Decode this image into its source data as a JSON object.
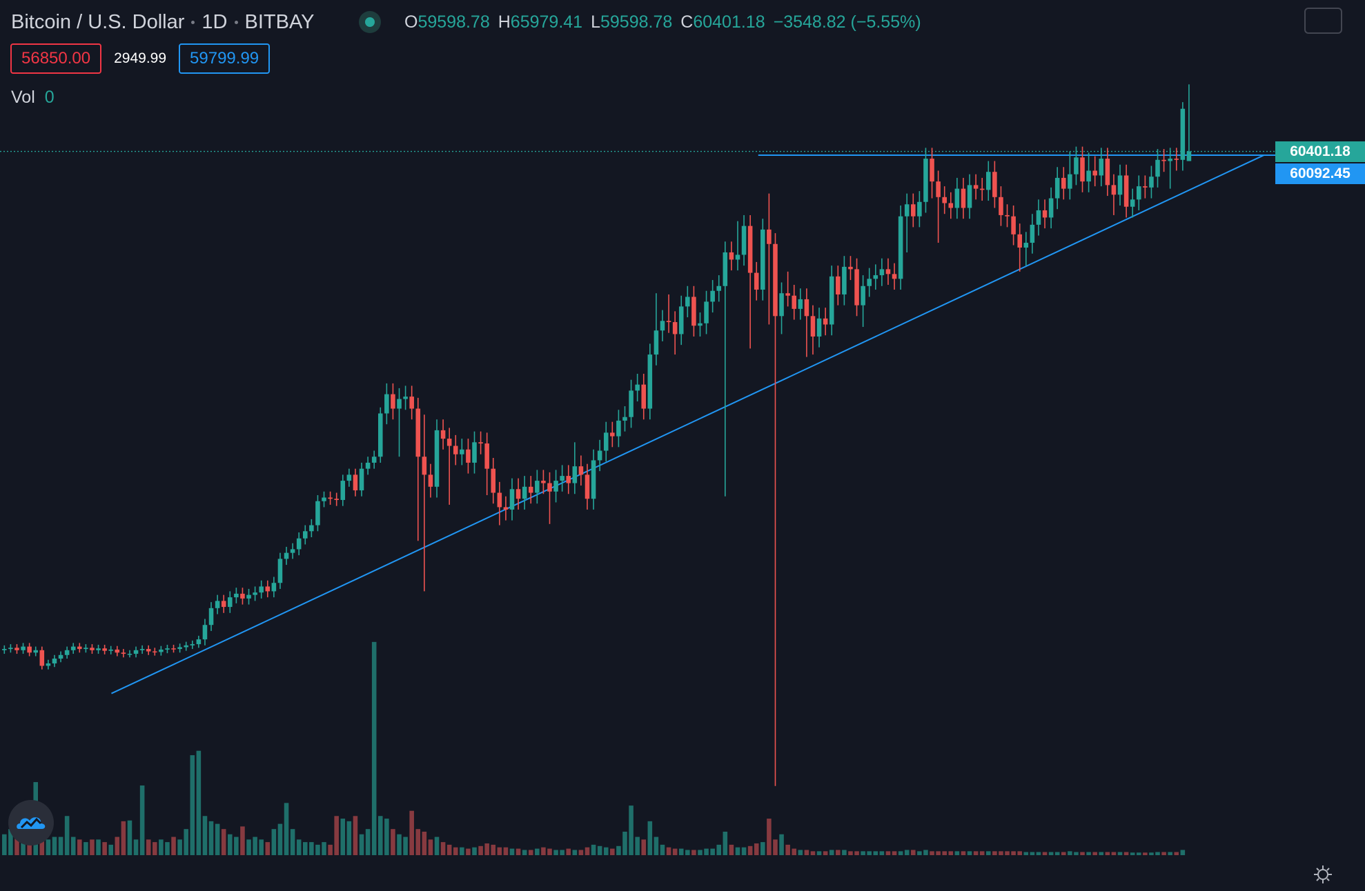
{
  "header": {
    "symbol": "Bitcoin / U.S. Dollar",
    "interval": "1D",
    "exchange": "BITBAY",
    "o_label": "O",
    "h_label": "H",
    "l_label": "L",
    "c_label": "C",
    "change": "−3548.82 (−5.55%)"
  },
  "quote": {
    "bid": "56850.00",
    "spread": "2949.99",
    "ask": "59799.99"
  },
  "volume_label": "Vol",
  "chart_data": {
    "type": "candlestick",
    "open": [
      18900,
      19000,
      19100,
      18900,
      19200,
      18700,
      18900,
      17600,
      17800,
      18200,
      18500,
      18900,
      19200,
      19000,
      19100,
      18900,
      19050,
      18850,
      18950,
      18700,
      18600,
      18600,
      18900,
      19000,
      18800,
      18750,
      18950,
      19050,
      19000,
      19150,
      19300,
      19400,
      19800,
      21000,
      22400,
      23000,
      22500,
      23300,
      23600,
      23200,
      23500,
      23700,
      24200,
      23800,
      24500,
      26500,
      27000,
      27300,
      28200,
      28800,
      29300,
      31300,
      31600,
      31500,
      31400,
      33000,
      33500,
      32200,
      34000,
      34500,
      35000,
      38600,
      40200,
      39000,
      39800,
      40000,
      39000,
      35000,
      33500,
      32500,
      37200,
      36500,
      35900,
      35200,
      35600,
      34500,
      36200,
      36100,
      34000,
      32000,
      30800,
      30600,
      32300,
      31500,
      32500,
      32000,
      33000,
      32800,
      32100,
      33000,
      33400,
      32800,
      34200,
      33500,
      31500,
      34700,
      35500,
      37000,
      36700,
      38000,
      38300,
      40500,
      41000,
      39000,
      43500,
      45500,
      46300,
      46200,
      45200,
      47500,
      48300,
      45900,
      46100,
      47900,
      48800,
      49200,
      52000,
      51400,
      51800,
      54200,
      50300,
      48900,
      53900,
      52700,
      46700,
      48600,
      48400,
      47300,
      48100,
      46700,
      45000,
      46500,
      46000,
      50000,
      48500,
      50800,
      50600,
      47600,
      49200,
      49800,
      50100,
      50600,
      50200,
      49800,
      55000,
      56000,
      55000,
      56200,
      59800,
      57900,
      56600,
      56100,
      55700,
      57300,
      55700,
      57600,
      57300,
      57200,
      58700,
      56600,
      55100,
      55000,
      53500,
      52400,
      52800,
      54300,
      55500,
      54900,
      56500,
      58200,
      57300,
      58500,
      59900,
      57900,
      58800,
      58400,
      59800,
      57600,
      56800,
      58400,
      55800,
      56400,
      57500,
      57400,
      58300,
      59700,
      59600,
      59800,
      59700,
      59598.78
    ],
    "high": [
      19300,
      19400,
      19400,
      19500,
      19500,
      19200,
      19200,
      18100,
      18500,
      18800,
      19200,
      19500,
      19500,
      19400,
      19400,
      19350,
      19350,
      19250,
      19250,
      19000,
      18900,
      19200,
      19300,
      19300,
      19100,
      19250,
      19350,
      19350,
      19450,
      19600,
      19700,
      20100,
      21500,
      22900,
      23500,
      23500,
      23800,
      24100,
      24100,
      24000,
      24200,
      24700,
      24700,
      25000,
      27000,
      27500,
      27800,
      28700,
      29300,
      29800,
      31800,
      32100,
      32100,
      32000,
      33500,
      34000,
      34000,
      34500,
      35000,
      35500,
      39100,
      41100,
      41100,
      40700,
      40900,
      40900,
      39900,
      38500,
      34400,
      38100,
      38100,
      37400,
      36800,
      36500,
      36500,
      37100,
      37100,
      37000,
      34900,
      32900,
      31700,
      33200,
      33200,
      33400,
      33400,
      33900,
      33900,
      33700,
      33900,
      34300,
      34300,
      36200,
      35100,
      34400,
      35600,
      36400,
      37900,
      37900,
      38900,
      39200,
      41400,
      41900,
      41900,
      44400,
      48600,
      47200,
      48500,
      47100,
      48400,
      49200,
      49200,
      47000,
      48800,
      49700,
      50100,
      52900,
      52900,
      54600,
      55100,
      55100,
      51200,
      54800,
      56900,
      53600,
      49500,
      50400,
      49300,
      49000,
      49000,
      47600,
      47400,
      47400,
      50900,
      50900,
      51700,
      51700,
      51500,
      50100,
      50700,
      51000,
      51500,
      51500,
      51100,
      55900,
      56900,
      56900,
      57100,
      60700,
      60700,
      58800,
      57500,
      57000,
      58200,
      58200,
      58500,
      58500,
      58200,
      59600,
      59600,
      57500,
      56000,
      55900,
      54400,
      53700,
      55200,
      56400,
      56400,
      57400,
      59100,
      59100,
      60400,
      60800,
      60800,
      60300,
      60000,
      60700,
      60700,
      58500,
      59300,
      59300,
      57300,
      58400,
      58400,
      59200,
      60600,
      60600,
      60700,
      60700,
      64500,
      65979.41
    ],
    "low": [
      18600,
      18700,
      18600,
      18600,
      18400,
      18400,
      17300,
      17300,
      17500,
      17900,
      18200,
      18600,
      18700,
      18700,
      18600,
      18600,
      18550,
      18550,
      18400,
      18300,
      18300,
      18300,
      18600,
      18500,
      18450,
      18450,
      18650,
      18700,
      18700,
      18850,
      19000,
      19100,
      19300,
      20500,
      21900,
      22000,
      22000,
      22800,
      22700,
      22700,
      23000,
      23200,
      23300,
      23300,
      24000,
      26000,
      26500,
      26800,
      27700,
      28300,
      28800,
      30800,
      31000,
      30900,
      30900,
      32500,
      31700,
      31700,
      33500,
      34000,
      34500,
      37700,
      38100,
      35000,
      38900,
      38100,
      28000,
      23800,
      31600,
      31600,
      35600,
      31000,
      34300,
      34300,
      33600,
      33600,
      35200,
      31800,
      31100,
      29300,
      29700,
      29700,
      30600,
      30600,
      31100,
      31100,
      31900,
      29400,
      31200,
      32100,
      31900,
      31900,
      32600,
      30600,
      30600,
      33800,
      34600,
      35800,
      35800,
      37100,
      37400,
      39600,
      38100,
      38100,
      42600,
      44600,
      45300,
      43500,
      44300,
      46600,
      45000,
      45000,
      45200,
      47000,
      47900,
      31700,
      50500,
      50500,
      50900,
      44000,
      48000,
      48000,
      46000,
      7600,
      45200,
      47500,
      46400,
      46400,
      43300,
      43500,
      44100,
      45100,
      45100,
      47600,
      47600,
      49700,
      46700,
      45800,
      48300,
      48900,
      49200,
      49300,
      48900,
      48900,
      52000,
      54100,
      54100,
      55300,
      56500,
      52800,
      55200,
      54800,
      54800,
      54800,
      54800,
      56400,
      56300,
      56300,
      55700,
      54200,
      54100,
      52600,
      50400,
      50900,
      51900,
      53400,
      54000,
      54000,
      55600,
      56400,
      56400,
      57600,
      57000,
      57000,
      57500,
      57500,
      56700,
      55100,
      55900,
      54900,
      54900,
      55500,
      56500,
      56500,
      57400,
      58700,
      57300,
      58800,
      58800,
      59598.78
    ],
    "close": [
      19000,
      19100,
      18900,
      19200,
      18700,
      18900,
      17600,
      17800,
      18200,
      18500,
      18900,
      19200,
      19000,
      19100,
      18900,
      19050,
      18850,
      18950,
      18700,
      18600,
      18600,
      18900,
      19000,
      18800,
      18750,
      18950,
      19050,
      19000,
      19150,
      19300,
      19400,
      19800,
      21000,
      22400,
      23000,
      22500,
      23300,
      23600,
      23200,
      23500,
      23700,
      24200,
      23800,
      24500,
      26500,
      27000,
      27300,
      28200,
      28800,
      29300,
      31300,
      31600,
      31500,
      31400,
      33000,
      33500,
      32200,
      34000,
      34500,
      35000,
      38600,
      40200,
      39000,
      39800,
      40000,
      39000,
      35000,
      33500,
      32500,
      37200,
      36500,
      35900,
      35200,
      35600,
      34500,
      36200,
      36100,
      34000,
      32000,
      30800,
      30600,
      32300,
      31500,
      32500,
      32000,
      33000,
      32800,
      32100,
      33000,
      33400,
      32800,
      34200,
      33500,
      31500,
      34700,
      35500,
      37000,
      36700,
      38000,
      38300,
      40500,
      41000,
      39000,
      43500,
      45500,
      46300,
      46200,
      45200,
      47500,
      48300,
      45900,
      46100,
      47900,
      48800,
      49200,
      52000,
      51400,
      51800,
      54200,
      50300,
      48900,
      53900,
      52700,
      46700,
      48600,
      48400,
      47300,
      48100,
      46700,
      45000,
      46500,
      46000,
      50000,
      48500,
      50800,
      50600,
      47600,
      49200,
      49800,
      50100,
      50600,
      50200,
      49800,
      55000,
      56000,
      55000,
      56200,
      59800,
      57900,
      56600,
      56100,
      55700,
      57300,
      55700,
      57600,
      57300,
      57200,
      58700,
      56600,
      55100,
      55000,
      53500,
      52400,
      52800,
      54300,
      55500,
      54900,
      56500,
      58200,
      57300,
      58500,
      59900,
      57900,
      58800,
      58400,
      59800,
      57600,
      56800,
      58400,
      55800,
      56400,
      57500,
      57400,
      58300,
      59700,
      59600,
      59800,
      59700,
      63949.99,
      60401.18
    ],
    "volume": [
      80,
      100,
      90,
      70,
      70,
      280,
      90,
      60,
      70,
      70,
      150,
      70,
      60,
      50,
      60,
      60,
      50,
      40,
      70,
      130,
      133,
      60,
      267,
      60,
      50,
      60,
      50,
      70,
      60,
      100,
      383,
      400,
      150,
      130,
      120,
      100,
      80,
      70,
      110,
      60,
      70,
      60,
      50,
      100,
      120,
      200,
      100,
      60,
      50,
      50,
      40,
      50,
      40,
      150,
      140,
      130,
      150,
      80,
      100,
      817,
      150,
      140,
      100,
      80,
      70,
      170,
      100,
      90,
      60,
      70,
      50,
      40,
      30,
      30,
      25,
      30,
      35,
      45,
      40,
      30,
      30,
      25,
      25,
      20,
      20,
      25,
      30,
      25,
      20,
      20,
      25,
      20,
      20,
      30,
      40,
      35,
      30,
      25,
      35,
      90,
      190,
      70,
      60,
      130,
      70,
      40,
      30,
      25,
      25,
      20,
      20,
      20,
      25,
      25,
      40,
      90,
      40,
      30,
      30,
      35,
      45,
      50,
      140,
      60,
      80,
      40,
      25,
      20,
      20,
      15,
      15,
      15,
      20,
      20,
      20,
      15,
      15,
      15,
      15,
      15,
      15,
      15,
      15,
      15,
      20,
      20,
      15,
      20,
      15,
      15,
      15,
      15,
      15,
      15,
      15,
      15,
      15,
      15,
      15,
      15,
      15,
      15,
      15,
      12,
      12,
      12,
      12,
      12,
      12,
      12,
      15,
      12,
      12,
      12,
      12,
      12,
      12,
      12,
      12,
      12,
      10,
      10,
      10,
      10,
      12,
      12,
      12,
      12,
      20,
      0
    ],
    "ylim": [
      1700,
      73000
    ],
    "volume_lim": [
      0,
      1000
    ],
    "up_color": "#26a69a",
    "down_color": "#ef5350",
    "volume_up_color": "#1f6f6a",
    "volume_down_color": "#873a40",
    "horizontal_line": 60092.45,
    "trendline_start": 15300,
    "line_color": "#2196f3"
  }
}
